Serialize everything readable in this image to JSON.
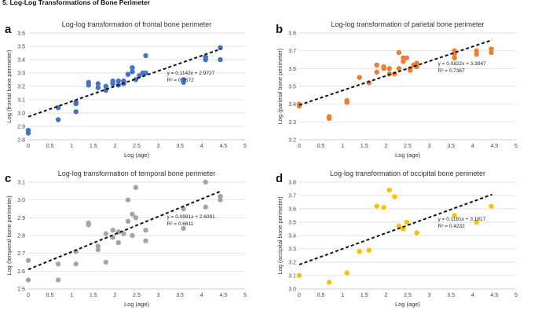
{
  "heading": "5. Log-Log Transformations of Bone Perimeter",
  "chart_data": [
    {
      "panel_label": "a",
      "type": "scatter",
      "title": "Log-log transformation of frontal bone perimeter",
      "xlabel": "Log (age)",
      "ylabel": "Log (frontal bone perimeter)",
      "xlim": [
        0,
        5
      ],
      "ylim": [
        2.8,
        3.6
      ],
      "xticks": [
        "0",
        "0.5",
        "1",
        "1.5",
        "2",
        "2.5",
        "3",
        "3.5",
        "4",
        "4.5",
        "5"
      ],
      "yticks": [
        "2.8",
        "2.9",
        "3.0",
        "3.1",
        "3.2",
        "3.3",
        "3.4",
        "3.5",
        "3.6"
      ],
      "color": "#4472c4",
      "equation": "y = 0.1142x + 2.9727",
      "r_squared": "R² = 0.7672",
      "trend": {
        "slope": 0.1142,
        "intercept": 2.9727
      },
      "points": [
        [
          0,
          2.87
        ],
        [
          0,
          2.85
        ],
        [
          0.69,
          3.04
        ],
        [
          0.69,
          2.95
        ],
        [
          1.1,
          3.07
        ],
        [
          1.1,
          3.01
        ],
        [
          1.1,
          3.08
        ],
        [
          1.39,
          3.21
        ],
        [
          1.39,
          3.23
        ],
        [
          1.61,
          3.22
        ],
        [
          1.61,
          3.19
        ],
        [
          1.79,
          3.2
        ],
        [
          1.79,
          3.17
        ],
        [
          1.95,
          3.22
        ],
        [
          1.95,
          3.24
        ],
        [
          2.08,
          3.21
        ],
        [
          2.08,
          3.24
        ],
        [
          2.2,
          3.22
        ],
        [
          2.2,
          3.24
        ],
        [
          2.3,
          3.29
        ],
        [
          2.4,
          3.31
        ],
        [
          2.4,
          3.34
        ],
        [
          2.48,
          3.25
        ],
        [
          2.56,
          3.28
        ],
        [
          2.64,
          3.3
        ],
        [
          2.71,
          3.3
        ],
        [
          2.71,
          3.43
        ],
        [
          3.58,
          3.25
        ],
        [
          3.58,
          3.23
        ],
        [
          4.09,
          3.4
        ],
        [
          4.09,
          3.42
        ],
        [
          4.43,
          3.49
        ],
        [
          4.43,
          3.4
        ]
      ]
    },
    {
      "panel_label": "b",
      "type": "scatter",
      "title": "Log-log transformation of parietal bone perimeter",
      "xlabel": "Log (age)",
      "ylabel": "Log (parietal bone perimeter)",
      "xlim": [
        0,
        5
      ],
      "ylim": [
        3.2,
        3.8
      ],
      "xticks": [
        "0",
        "0.5",
        "1",
        "1.5",
        "2",
        "2.5",
        "3",
        "3.5",
        "4",
        "4.5",
        "5"
      ],
      "yticks": [
        "3.2",
        "3.3",
        "3.4",
        "3.5",
        "3.6",
        "3.7",
        "3.8"
      ],
      "color": "#ed7d31",
      "equation": "y = 0.0822x + 3.3947",
      "r_squared": "R² = 0.7367",
      "trend": {
        "slope": 0.0822,
        "intercept": 3.3947
      },
      "points": [
        [
          0,
          3.4
        ],
        [
          0,
          3.39
        ],
        [
          0.69,
          3.33
        ],
        [
          0.69,
          3.32
        ],
        [
          1.1,
          3.41
        ],
        [
          1.1,
          3.42
        ],
        [
          1.39,
          3.55
        ],
        [
          1.61,
          3.52
        ],
        [
          1.79,
          3.58
        ],
        [
          1.79,
          3.62
        ],
        [
          1.95,
          3.6
        ],
        [
          1.95,
          3.61
        ],
        [
          2.08,
          3.57
        ],
        [
          2.08,
          3.6
        ],
        [
          2.2,
          3.57
        ],
        [
          2.3,
          3.6
        ],
        [
          2.3,
          3.69
        ],
        [
          2.4,
          3.66
        ],
        [
          2.4,
          3.64
        ],
        [
          2.48,
          3.66
        ],
        [
          2.56,
          3.6
        ],
        [
          2.56,
          3.59
        ],
        [
          2.64,
          3.62
        ],
        [
          2.71,
          3.63
        ],
        [
          2.71,
          3.61
        ],
        [
          3.58,
          3.68
        ],
        [
          3.58,
          3.7
        ],
        [
          3.58,
          3.66
        ],
        [
          4.09,
          3.7
        ],
        [
          4.09,
          3.68
        ],
        [
          4.43,
          3.71
        ],
        [
          4.43,
          3.69
        ]
      ]
    },
    {
      "panel_label": "c",
      "type": "scatter",
      "title": "Log-log transformation of temporal bone perimeter",
      "xlabel": "Log (age)",
      "ylabel": "Log (temporal bone perimeter)",
      "xlim": [
        0,
        5
      ],
      "ylim": [
        2.5,
        3.1
      ],
      "xticks": [
        "0",
        "0.5",
        "1",
        "1.5",
        "2",
        "2.5",
        "3",
        "3.5",
        "4",
        "4.5",
        "5"
      ],
      "yticks": [
        "2.5",
        "2.6",
        "2.7",
        "2.8",
        "2.9",
        "3.0",
        "3.1"
      ],
      "color": "#a5a5a5",
      "equation": "y = 0.0991x + 2.6091",
      "r_squared": "R² = 0.6611",
      "trend": {
        "slope": 0.0991,
        "intercept": 2.6091
      },
      "points": [
        [
          0,
          2.66
        ],
        [
          0,
          2.55
        ],
        [
          0.69,
          2.64
        ],
        [
          0.69,
          2.55
        ],
        [
          1.1,
          2.71
        ],
        [
          1.1,
          2.64
        ],
        [
          1.39,
          2.86
        ],
        [
          1.39,
          2.87
        ],
        [
          1.61,
          2.72
        ],
        [
          1.61,
          2.74
        ],
        [
          1.79,
          2.65
        ],
        [
          1.79,
          2.81
        ],
        [
          1.95,
          2.79
        ],
        [
          1.95,
          2.83
        ],
        [
          2.08,
          2.82
        ],
        [
          2.08,
          2.76
        ],
        [
          2.2,
          2.81
        ],
        [
          2.3,
          3.0
        ],
        [
          2.3,
          2.88
        ],
        [
          2.4,
          2.92
        ],
        [
          2.4,
          2.8
        ],
        [
          2.48,
          3.07
        ],
        [
          2.48,
          2.9
        ],
        [
          2.71,
          2.83
        ],
        [
          2.71,
          2.77
        ],
        [
          3.58,
          2.95
        ],
        [
          3.58,
          2.84
        ],
        [
          4.09,
          3.1
        ],
        [
          4.09,
          2.96
        ],
        [
          4.43,
          3.02
        ],
        [
          4.43,
          3.0
        ]
      ]
    },
    {
      "panel_label": "d",
      "type": "scatter",
      "title": "Log-log transformation of occipital bone perimeter",
      "xlabel": "Log (age)",
      "ylabel": "Log (occipital bone perimeter)",
      "xlim": [
        0,
        5
      ],
      "ylim": [
        3.0,
        3.8
      ],
      "xticks": [
        "0",
        "0.5",
        "1",
        "1.5",
        "2",
        "2.5",
        "3",
        "3.5",
        "4",
        "4.5",
        "5"
      ],
      "yticks": [
        "3.0",
        "3.1",
        "3.2",
        "3.3",
        "3.4",
        "3.5",
        "3.6",
        "3.7",
        "3.8"
      ],
      "color": "#ffc000",
      "equation": "y = 0.1181x + 3.1817",
      "r_squared": "R² = 0.4232",
      "trend": {
        "slope": 0.1181,
        "intercept": 3.1817
      },
      "points": [
        [
          0,
          3.1
        ],
        [
          0.69,
          3.05
        ],
        [
          1.1,
          3.12
        ],
        [
          1.39,
          3.28
        ],
        [
          1.61,
          3.29
        ],
        [
          1.79,
          3.62
        ],
        [
          1.95,
          3.61
        ],
        [
          2.08,
          3.74
        ],
        [
          2.2,
          3.69
        ],
        [
          2.3,
          3.47
        ],
        [
          2.4,
          3.45
        ],
        [
          2.48,
          3.5
        ],
        [
          2.71,
          3.42
        ],
        [
          3.58,
          3.55
        ],
        [
          4.09,
          3.5
        ],
        [
          4.43,
          3.62
        ]
      ]
    }
  ]
}
